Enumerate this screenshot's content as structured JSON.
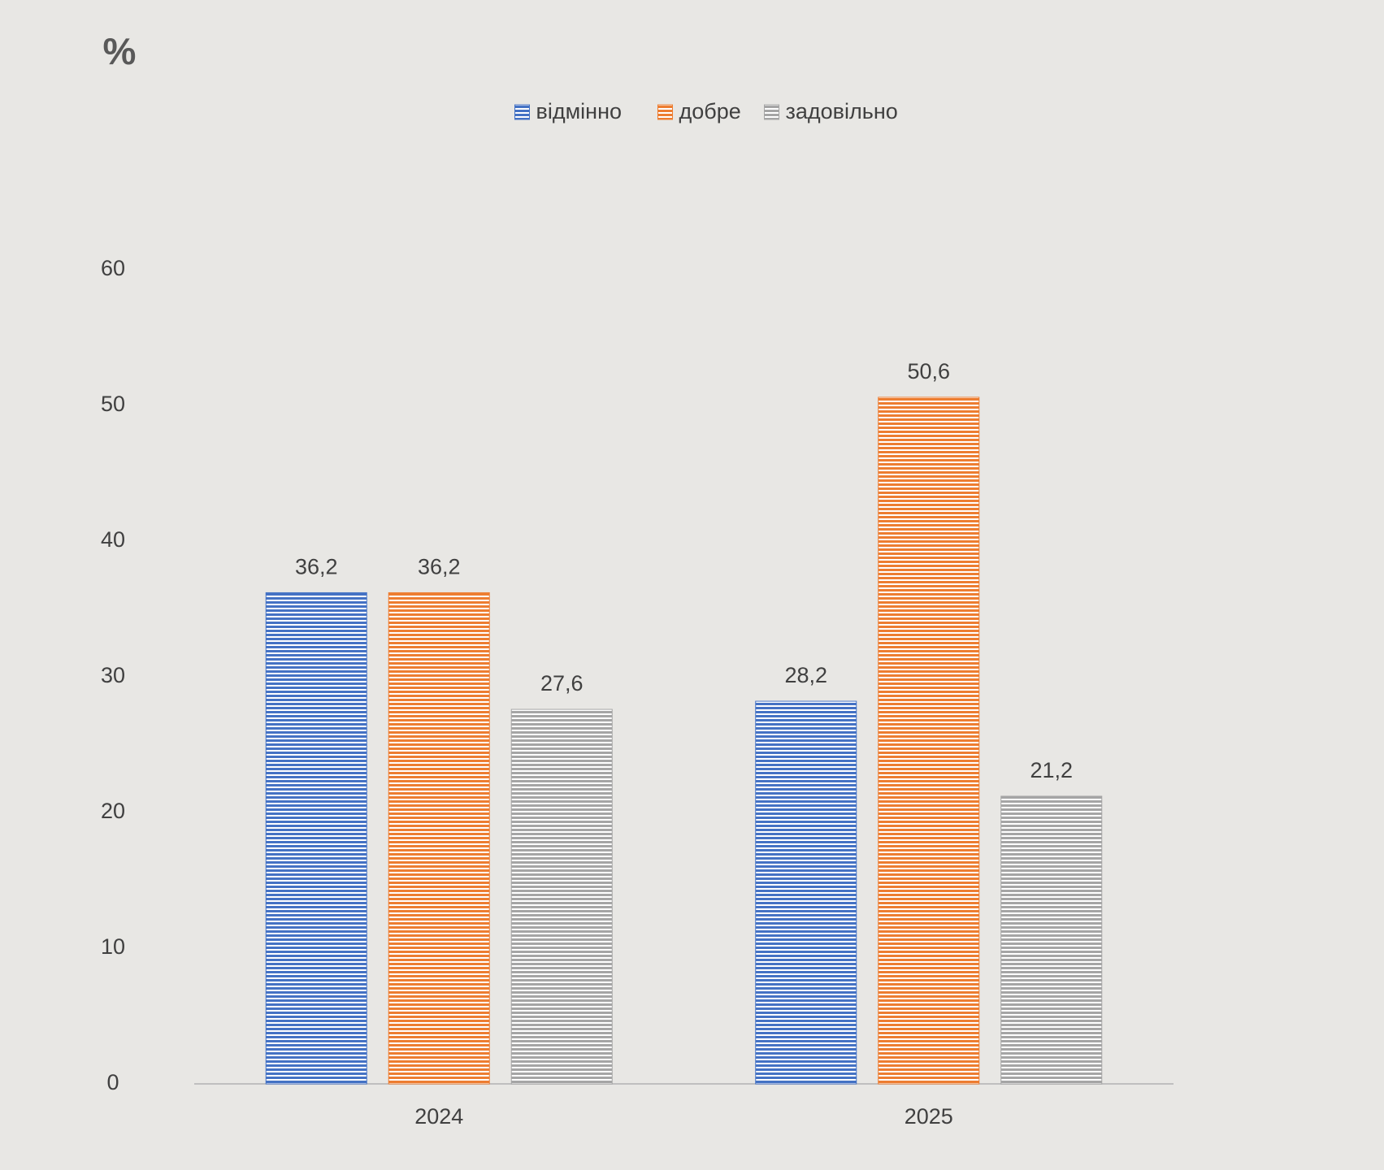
{
  "chart_data": {
    "type": "bar",
    "y_label": "%",
    "categories": [
      "2024",
      "2025"
    ],
    "series": [
      {
        "name": "відмінно",
        "color": "#4472c4",
        "values": [
          36.2,
          28.2
        ],
        "value_labels": [
          "36,2",
          "28,2"
        ]
      },
      {
        "name": "добре",
        "color": "#ed7d31",
        "values": [
          36.2,
          50.6
        ],
        "value_labels": [
          "36,2",
          "50,6"
        ]
      },
      {
        "name": "задовільно",
        "color": "#a5a5a5",
        "values": [
          27.6,
          21.2
        ],
        "value_labels": [
          "27,6",
          "21,2"
        ]
      }
    ],
    "ylim": [
      0,
      70
    ],
    "yticks": [
      0,
      10,
      20,
      30,
      40,
      50,
      60
    ],
    "grid": false,
    "legend": "top"
  }
}
